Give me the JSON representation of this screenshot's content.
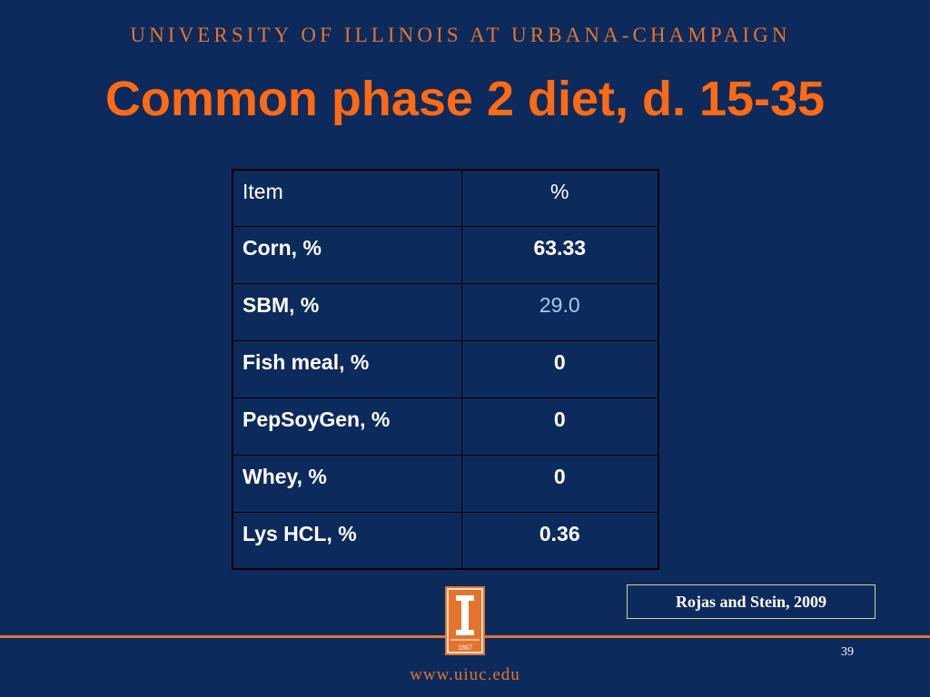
{
  "header": {
    "university": "UNIVERSITY OF ILLINOIS AT URBANA-CHAMPAIGN"
  },
  "slide": {
    "title": "Common phase 2 diet, d. 15-35"
  },
  "table": {
    "header": {
      "item": "Item",
      "value": "%"
    },
    "rows": [
      {
        "item": "Corn, %",
        "value": "63.33"
      },
      {
        "item": "SBM, %",
        "value": "29.0"
      },
      {
        "item": "Fish meal, %",
        "value": "0"
      },
      {
        "item": "PepSoyGen, %",
        "value": "0"
      },
      {
        "item": "Whey, %",
        "value": "0"
      },
      {
        "item": "Lys HCL, %",
        "value": "0.36"
      }
    ]
  },
  "citation": "Rojas and Stein, 2009",
  "footer": {
    "logo_year": "1867",
    "page_number": "39",
    "url": "www.uiuc.edu"
  },
  "colors": {
    "background": "#0d2a5c",
    "accent_orange": "#e3742e",
    "title_orange": "#ff6a13",
    "highlight_value": "#a9c8ec"
  }
}
